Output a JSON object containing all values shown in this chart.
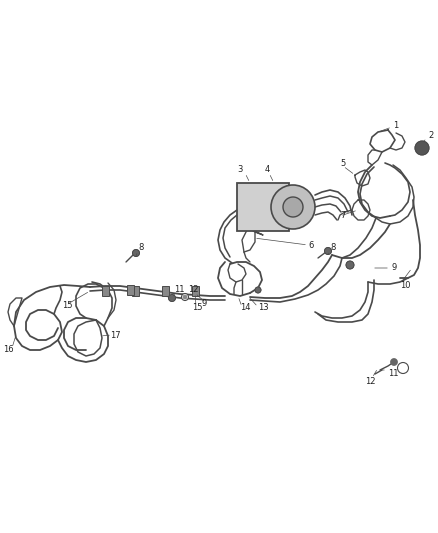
{
  "bg_color": "#ffffff",
  "line_color": "#4a4a4a",
  "label_color": "#222222",
  "figsize": [
    4.38,
    5.33
  ],
  "dpi": 100,
  "lw_main": 1.5,
  "lw_thin": 0.9,
  "lw_tube": 1.2,
  "fs_label": 6.0
}
